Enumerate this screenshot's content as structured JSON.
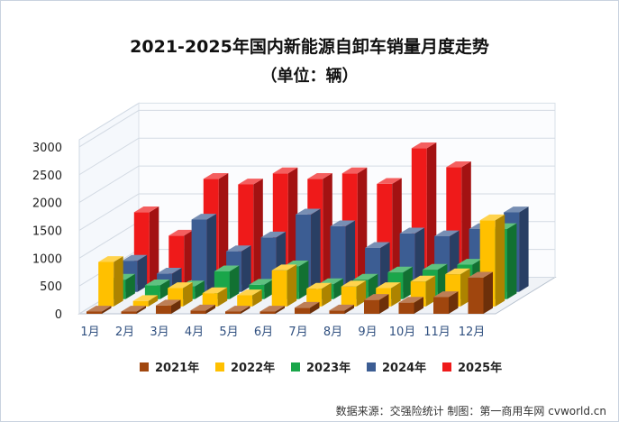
{
  "header": {
    "title": "2021-2025年国内新能源自卸车销量月度走势",
    "subtitle": "（单位：辆）"
  },
  "footer": {
    "source": "数据来源：交强险统计 制图：第一商用车网 cvworld.cn"
  },
  "chart_data": {
    "type": "bar",
    "style": "3d-clustered-depth",
    "title": "2021-2025年国内新能源自卸车销量月度走势",
    "subtitle": "（单位：辆）",
    "categories": [
      "1月",
      "2月",
      "3月",
      "4月",
      "5月",
      "6月",
      "7月",
      "8月",
      "9月",
      "10月",
      "11月",
      "12月"
    ],
    "ylim": [
      0,
      3000
    ],
    "yticks": [
      0,
      500,
      1000,
      1500,
      2000,
      2500,
      3000
    ],
    "grid": true,
    "legend_position": "bottom",
    "series": [
      {
        "name": "2021年",
        "color": "#a0460e",
        "values": [
          30,
          30,
          150,
          60,
          40,
          40,
          110,
          60,
          250,
          200,
          300,
          650
        ]
      },
      {
        "name": "2022年",
        "color": "#ffc000",
        "values": [
          800,
          100,
          330,
          240,
          200,
          650,
          320,
          360,
          330,
          450,
          580,
          1550
        ]
      },
      {
        "name": "2023年",
        "color": "#1aa64a",
        "values": [
          350,
          250,
          230,
          500,
          260,
          590,
          270,
          350,
          480,
          530,
          620,
          1260
        ]
      },
      {
        "name": "2024年",
        "color": "#3c5d93",
        "values": [
          560,
          330,
          1300,
          730,
          980,
          1390,
          1180,
          790,
          1050,
          1000,
          1130,
          1430
        ]
      },
      {
        "name": "2025年",
        "color": "#ef1a1a",
        "values": [
          1300,
          880,
          1900,
          1800,
          2000,
          1900,
          2000,
          1810,
          2450,
          2110,
          null,
          null
        ]
      }
    ]
  }
}
